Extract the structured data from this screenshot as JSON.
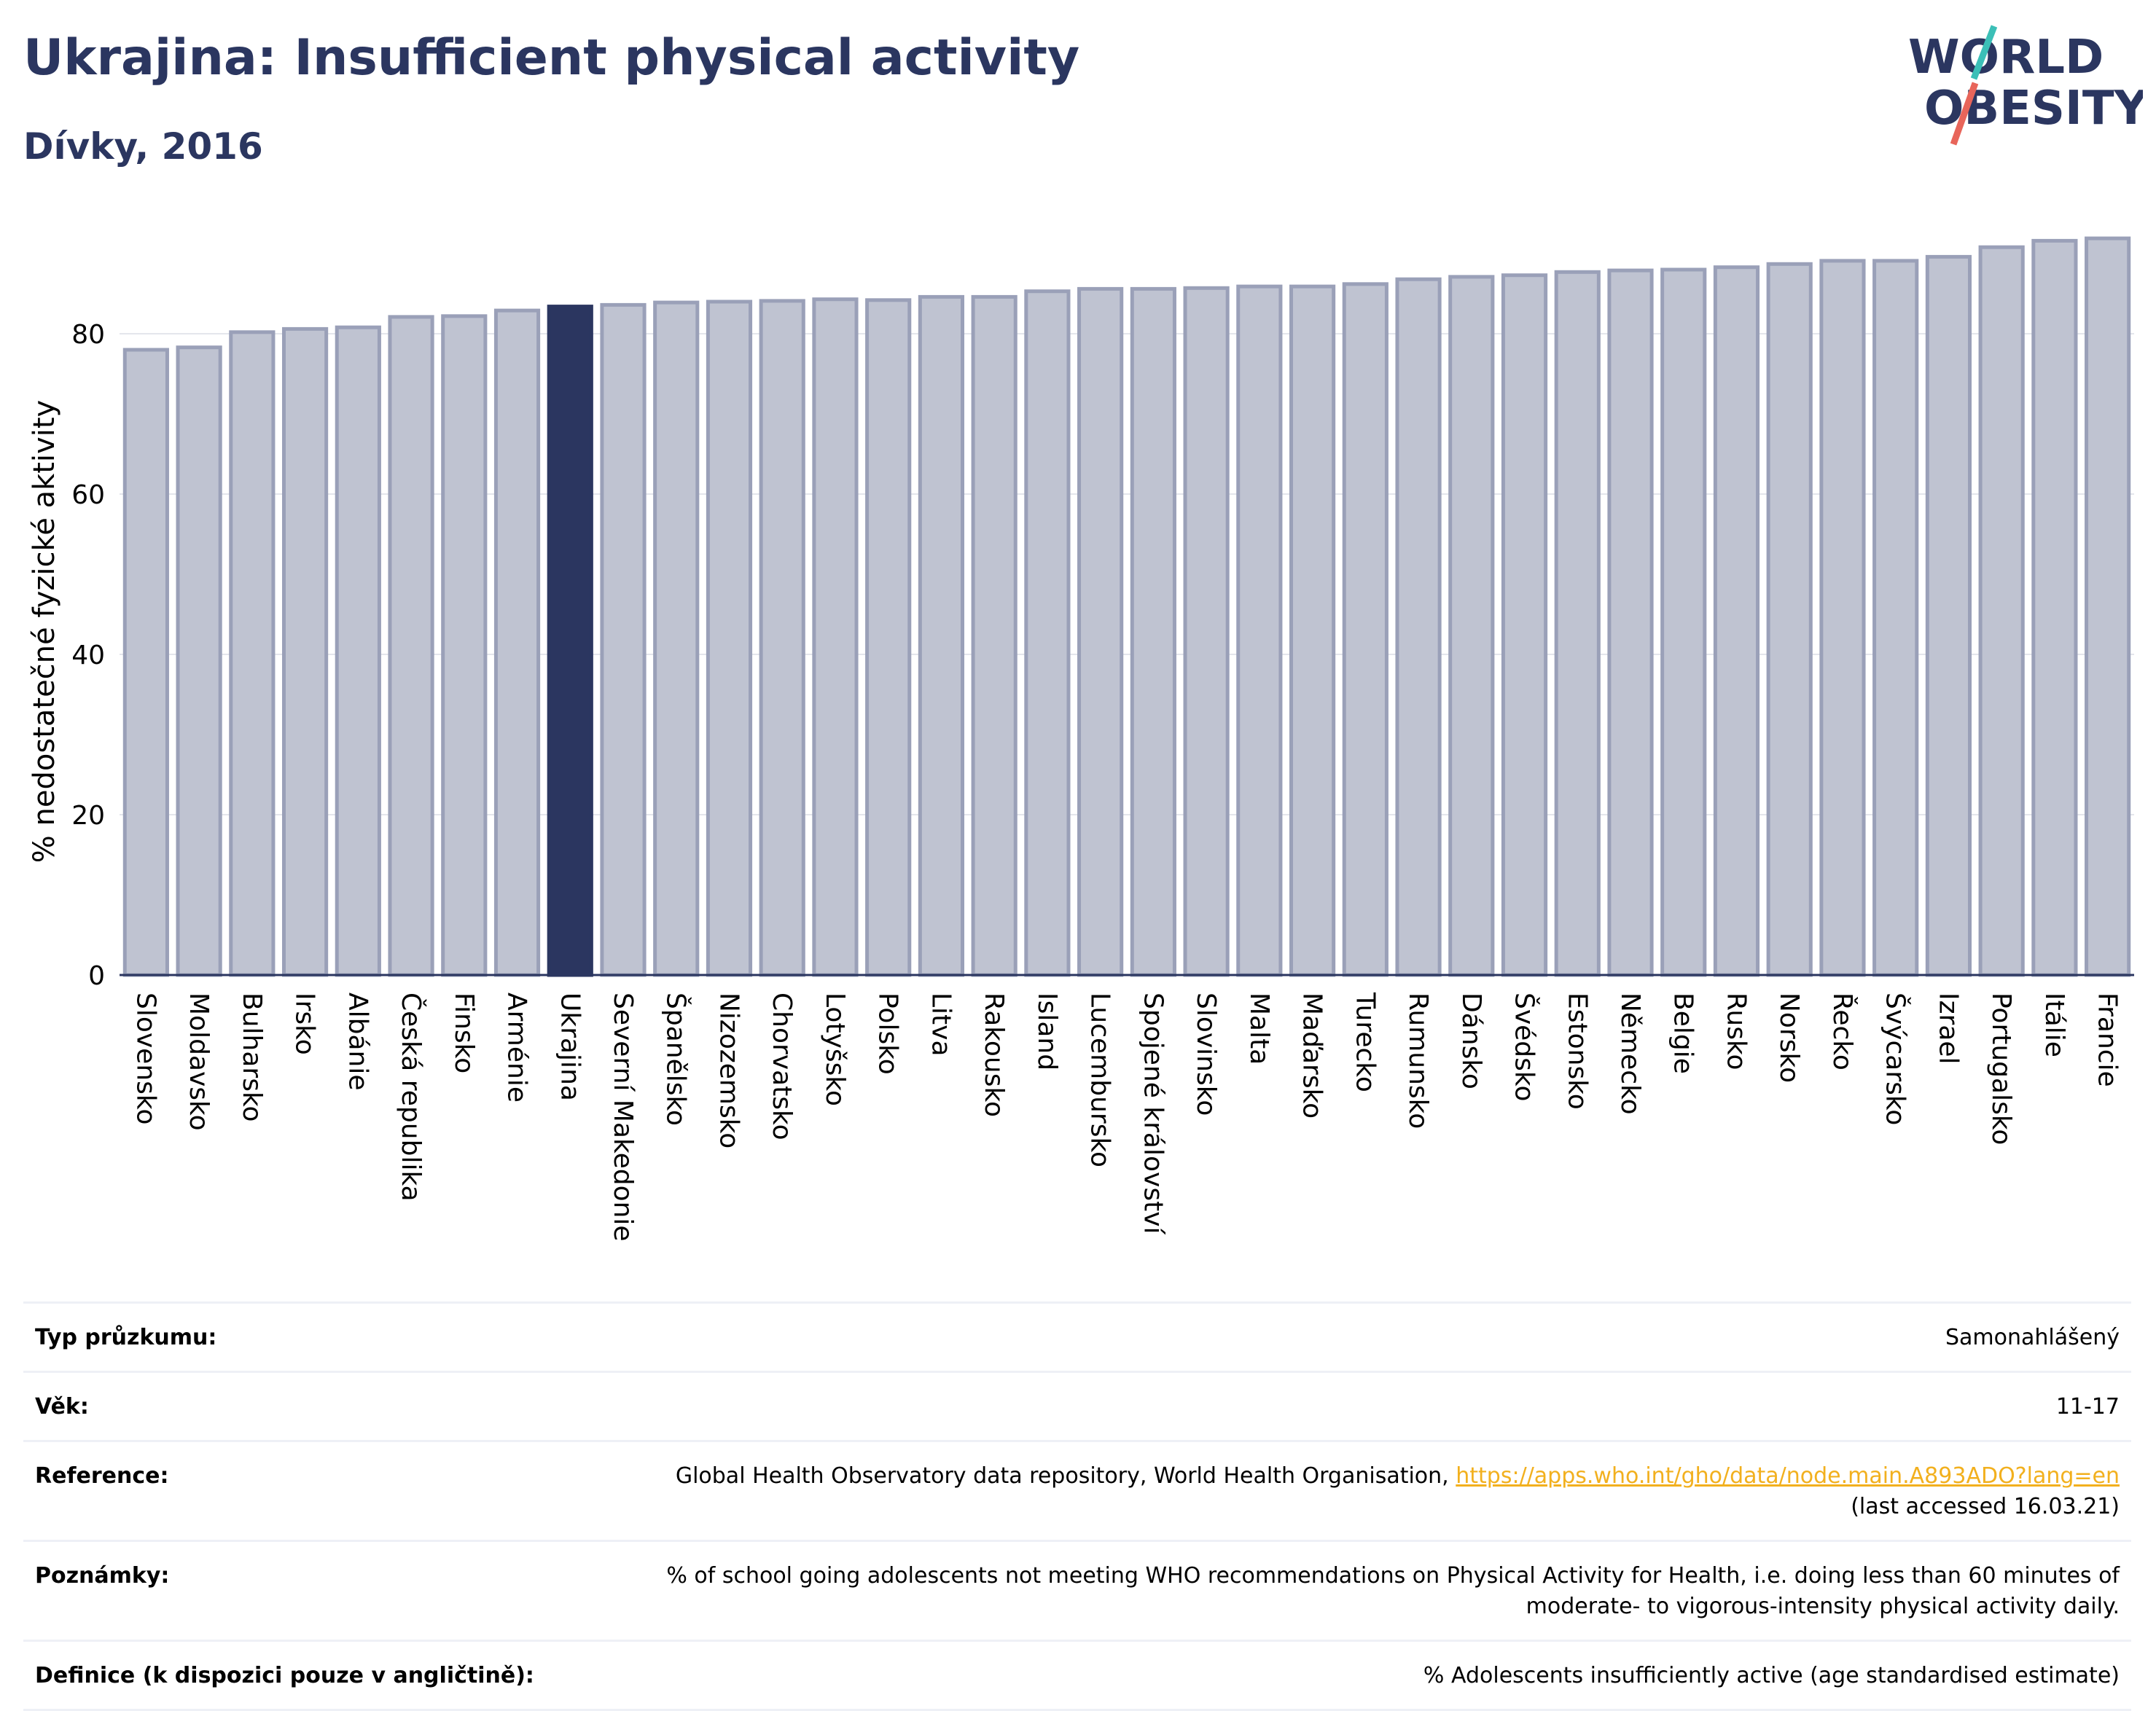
{
  "header": {
    "title": "Ukrajina: Insufficient physical activity",
    "subtitle": "Dívky, 2016"
  },
  "logo": {
    "line1": "WORLD",
    "line2": "OBESITY",
    "icon": "world-obesity-logo"
  },
  "colors": {
    "highlight": "#2b3660",
    "bar_fill": "#bfc3d1",
    "bar_stroke": "#9aa0b8",
    "text_dark": "#2b3660",
    "link": "#f2b01e",
    "logo_teal": "#3bbfb7",
    "logo_red": "#e8655a"
  },
  "chart_data": {
    "type": "bar",
    "ylabel": "% nedostatečné fyzické aktivity",
    "xlabel": "",
    "ylim": [
      0,
      93
    ],
    "yticks": [
      0,
      20,
      40,
      60,
      80
    ],
    "grid": true,
    "highlight": "Ukrajina",
    "categories": [
      "Slovensko",
      "Moldavsko",
      "Bulharsko",
      "Irsko",
      "Albánie",
      "Česká republika",
      "Finsko",
      "Arménie",
      "Ukrajina",
      "Severní Makedonie",
      "Španělsko",
      "Nizozemsko",
      "Chorvatsko",
      "Lotyšsko",
      "Polsko",
      "Litva",
      "Rakousko",
      "Island",
      "Lucembursko",
      "Spojené království",
      "Slovinsko",
      "Malta",
      "Maďarsko",
      "Turecko",
      "Rumunsko",
      "Dánsko",
      "Švédsko",
      "Estonsko",
      "Německo",
      "Belgie",
      "Rusko",
      "Norsko",
      "Řecko",
      "Švýcarsko",
      "Izrael",
      "Portugalsko",
      "Itálie",
      "Francie"
    ],
    "values": [
      78.0,
      78.3,
      80.2,
      80.6,
      80.8,
      82.1,
      82.2,
      82.9,
      83.4,
      83.6,
      83.9,
      84.0,
      84.1,
      84.3,
      84.2,
      84.6,
      84.6,
      85.3,
      85.6,
      85.6,
      85.7,
      85.9,
      85.9,
      86.2,
      86.8,
      87.1,
      87.3,
      87.7,
      87.9,
      88.0,
      88.3,
      88.7,
      89.1,
      89.1,
      89.6,
      90.8,
      91.6,
      91.9
    ]
  },
  "info": {
    "survey_label": "Typ průzkumu:",
    "survey_value": "Samonahlášený",
    "age_label": "Věk:",
    "age_value": "11-17",
    "reference_label": "Reference:",
    "reference_text": "Global Health Observatory data repository, World Health Organisation,",
    "reference_link": "https://apps.who.int/gho/data/node.main.A893ADO?lang=en",
    "reference_accessed": "(last accessed 16.03.21)",
    "notes_label": "Poznámky:",
    "notes_value": "% of school going adolescents not meeting WHO recommendations on Physical Activity for Health, i.e. doing less than 60 minutes of moderate- to vigorous-intensity physical activity daily.",
    "definition_label": "Definice (k dispozici pouze v angličtině):",
    "definition_value": "% Adolescents insufficiently active (age standardised estimate)"
  }
}
